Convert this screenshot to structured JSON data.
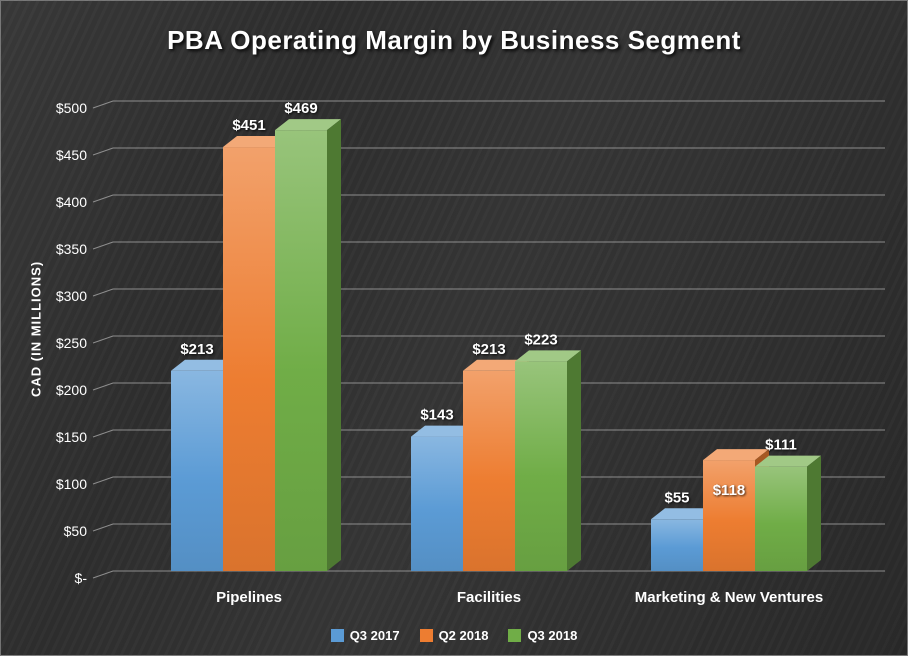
{
  "chart_data": {
    "type": "bar",
    "style": "3d-clustered-column",
    "title": "PBA Operating Margin by Business Segment",
    "ylabel": "CAD (IN MILLIONS)",
    "xlabel": "",
    "categories": [
      "Pipelines",
      "Facilities",
      "Marketing & New Ventures"
    ],
    "series": [
      {
        "name": "Q3 2017",
        "color": "#5b9bd5",
        "values": [
          213,
          143,
          55
        ],
        "labels": [
          "$213",
          "$143",
          "$55"
        ]
      },
      {
        "name": "Q2 2018",
        "color": "#ed7d31",
        "values": [
          451,
          213,
          118
        ],
        "labels": [
          "$451",
          "$213",
          "$118"
        ]
      },
      {
        "name": "Q3 2018",
        "color": "#70ad47",
        "values": [
          469,
          223,
          111
        ],
        "labels": [
          "$469",
          "$223",
          "$111"
        ]
      }
    ],
    "y_ticks": [
      {
        "value": 0,
        "label": "$-"
      },
      {
        "value": 50,
        "label": "$50"
      },
      {
        "value": 100,
        "label": "$100"
      },
      {
        "value": 150,
        "label": "$150"
      },
      {
        "value": 200,
        "label": "$200"
      },
      {
        "value": 250,
        "label": "$250"
      },
      {
        "value": 300,
        "label": "$300"
      },
      {
        "value": 350,
        "label": "$350"
      },
      {
        "value": 400,
        "label": "$400"
      },
      {
        "value": 450,
        "label": "$450"
      },
      {
        "value": 500,
        "label": "$500"
      }
    ],
    "ylim": [
      0,
      500
    ],
    "grid": true,
    "legend_position": "bottom",
    "label_dy_overrides": [
      [
        0,
        0,
        0
      ],
      [
        0,
        0,
        0
      ],
      [
        0,
        52,
        0
      ]
    ]
  }
}
